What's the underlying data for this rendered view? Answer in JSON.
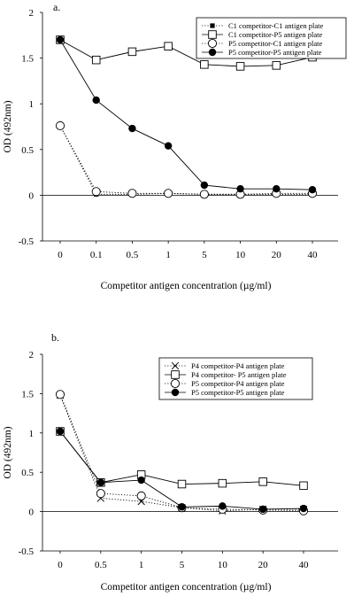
{
  "chart_data": [
    {
      "panel_label": "a.",
      "type": "line",
      "ylabel": "OD (492nm)",
      "xlabel": "Competitor antigen concentration (µg/ml)",
      "categories": [
        "0",
        "0.1",
        "0.5",
        "1",
        "5",
        "10",
        "20",
        "40"
      ],
      "ylim": [
        -0.5,
        2
      ],
      "yticks": [
        "-0.5",
        "0",
        "0.5",
        "1",
        "1.5",
        "2"
      ],
      "legend_position": "top-right",
      "series": [
        {
          "name": "C1 competitor-C1 antigen plate",
          "marker": "filled-square",
          "line": "dotted",
          "values": [
            0.76,
            0.01,
            0.01,
            0.02,
            0.01,
            0.01,
            0.01,
            0.01
          ]
        },
        {
          "name": "C1 competitor-P5 antigen plate",
          "marker": "open-square",
          "line": "solid",
          "values": [
            1.7,
            1.48,
            1.57,
            1.63,
            1.43,
            1.41,
            1.42,
            1.51
          ]
        },
        {
          "name": "P5 competitor-C1 antigen plate",
          "marker": "open-circle",
          "line": "dotted",
          "values": [
            0.76,
            0.04,
            0.02,
            0.02,
            0.01,
            0.01,
            0.02,
            0.02
          ]
        },
        {
          "name": "P5 competitor-P5 antigen plate",
          "marker": "filled-circle",
          "line": "solid",
          "values": [
            1.7,
            1.04,
            0.73,
            0.54,
            0.11,
            0.07,
            0.07,
            0.06
          ]
        }
      ]
    },
    {
      "panel_label": "b.",
      "type": "line",
      "ylabel": "OD (492nm)",
      "xlabel": "Competitor antigen concentration (µg/ml)",
      "categories": [
        "0",
        "0.5",
        "1",
        "5",
        "10",
        "20",
        "40"
      ],
      "ylim": [
        -0.5,
        2
      ],
      "yticks": [
        "-0.5",
        "0",
        "0.5",
        "1",
        "1.5",
        "2"
      ],
      "legend_position": "top-right",
      "series": [
        {
          "name": "P4 competitor-P4 antigen plate",
          "marker": "x",
          "line": "dotted",
          "values": [
            1.48,
            0.17,
            0.13,
            0.05,
            0.01,
            0.03,
            0.03
          ]
        },
        {
          "name": "P4 competitor- P5 antigen plate",
          "marker": "open-square",
          "line": "solid",
          "values": [
            1.02,
            0.37,
            0.47,
            0.35,
            0.36,
            0.38,
            0.33
          ]
        },
        {
          "name": "P5 competitor-P4 antigen plate",
          "marker": "open-circle",
          "line": "dotted",
          "values": [
            1.49,
            0.23,
            0.2,
            0.05,
            0.03,
            0.02,
            0.01
          ]
        },
        {
          "name": "P5 competitor-P5 antigen plate",
          "marker": "filled-circle",
          "line": "solid",
          "values": [
            1.02,
            0.37,
            0.4,
            0.06,
            0.07,
            0.03,
            0.04
          ]
        }
      ]
    }
  ]
}
